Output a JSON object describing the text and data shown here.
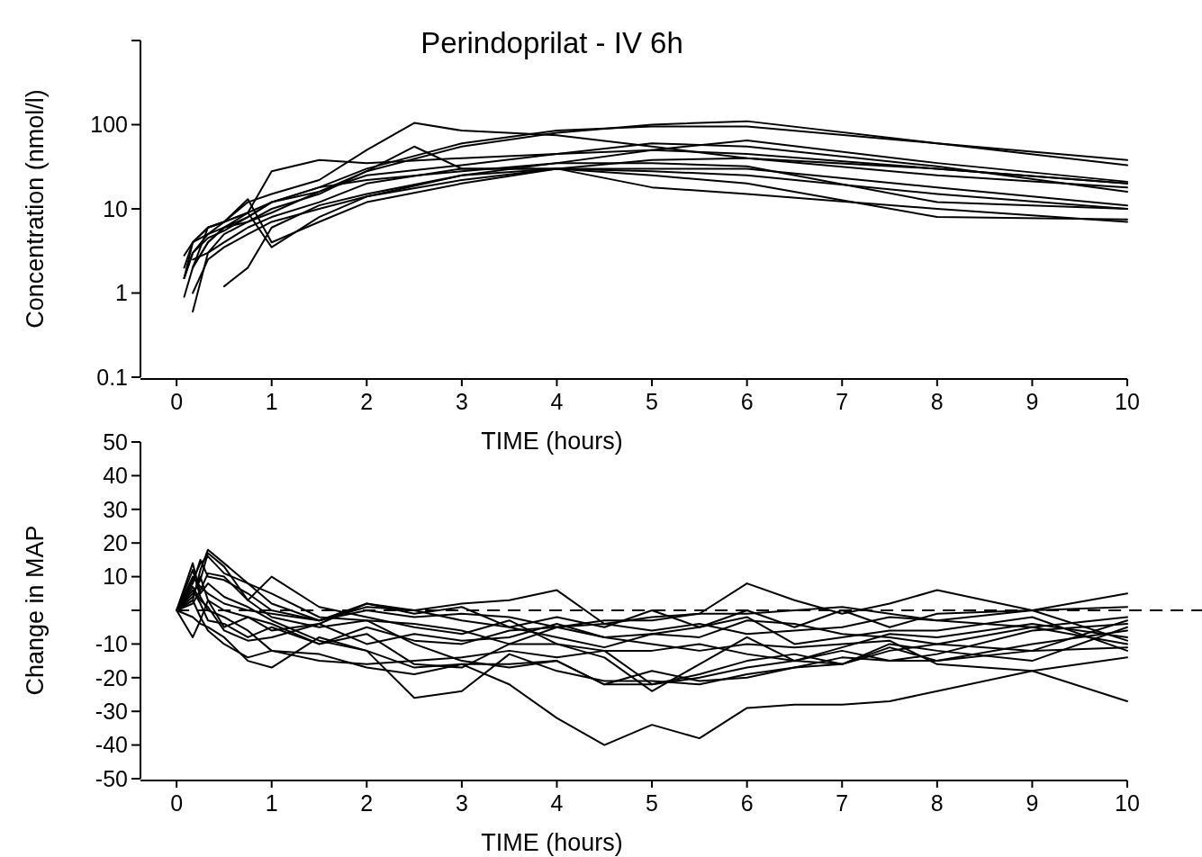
{
  "chart_data": [
    {
      "type": "line",
      "title": "Perindoprilat - IV 6h",
      "xlabel": "TIME (hours)",
      "ylabel": "Concentration (nmol/l)",
      "log": "y",
      "xlim": [
        -0.38,
        10
      ],
      "xticks": [
        0,
        1,
        2,
        3,
        4,
        5,
        6,
        7,
        8,
        9,
        10
      ],
      "ylim": [
        0.1,
        1000
      ],
      "yticks": [
        0.1,
        1,
        10,
        100,
        {
          "value": 1000,
          "label": null
        }
      ],
      "grid": false,
      "marker": "none",
      "line_style": "solid",
      "series": [
        {
          "color": "#000000",
          "x": [
            0.08,
            0.17,
            0.33,
            0.5,
            0.75,
            1,
            1.5,
            2,
            2.5,
            3,
            4,
            5,
            6,
            8,
            10
          ],
          "values": [
            2.8,
            4,
            6,
            7,
            12,
            15,
            22,
            50,
            105,
            85,
            75,
            55,
            40,
            30,
            20
          ]
        },
        {
          "color": "#000000",
          "x": [
            0.17,
            0.33,
            0.5,
            0.75,
            1,
            1.5,
            2,
            3,
            4,
            5,
            6,
            8,
            10
          ],
          "values": [
            0.6,
            3,
            5,
            7,
            10,
            15,
            28,
            55,
            80,
            100,
            110,
            60,
            38
          ]
        },
        {
          "color": "#000000",
          "x": [
            0.08,
            0.17,
            0.33,
            0.5,
            0.75,
            1,
            1.5,
            2,
            3,
            4,
            5,
            6,
            8,
            10
          ],
          "values": [
            1.5,
            4,
            5,
            6,
            8,
            12,
            18,
            30,
            60,
            85,
            95,
            95,
            60,
            33
          ]
        },
        {
          "color": "#000000",
          "x": [
            0.08,
            0.17,
            0.33,
            0.5,
            0.75,
            1,
            1.5,
            2,
            2.5,
            3,
            4,
            5,
            6,
            8,
            10
          ],
          "values": [
            0.9,
            2,
            4,
            6,
            7,
            9,
            16,
            28,
            55,
            30,
            30,
            28,
            25,
            15,
            10
          ]
        },
        {
          "color": "#000000",
          "x": [
            0.5,
            0.75,
            1,
            1.5,
            2,
            3,
            4,
            5,
            6,
            8,
            10
          ],
          "values": [
            1.2,
            2,
            6,
            11,
            15,
            25,
            35,
            50,
            65,
            35,
            21
          ]
        },
        {
          "color": "#000000",
          "x": [
            0.17,
            0.33,
            0.5,
            0.75,
            1,
            1.5,
            2,
            3,
            4,
            5,
            6,
            8,
            10
          ],
          "values": [
            2,
            6,
            7,
            9,
            28,
            38,
            35,
            40,
            45,
            50,
            45,
            30,
            20
          ]
        },
        {
          "color": "#000000",
          "x": [
            0.08,
            0.17,
            0.33,
            0.5,
            0.75,
            1,
            1.5,
            2,
            3,
            4,
            5,
            6,
            8,
            10
          ],
          "values": [
            1.5,
            3,
            4.5,
            5.5,
            8,
            12,
            18,
            22,
            28,
            35,
            35,
            32,
            12,
            10
          ]
        },
        {
          "color": "#000000",
          "x": [
            0.17,
            0.33,
            0.5,
            0.75,
            1,
            1.5,
            2,
            3,
            4,
            5,
            6,
            8,
            10
          ],
          "values": [
            1,
            2.5,
            3.5,
            5,
            7,
            10,
            14,
            22,
            30,
            38,
            40,
            25,
            18
          ]
        },
        {
          "color": "#000000",
          "x": [
            0.17,
            0.33,
            0.5,
            0.75,
            1,
            1.5,
            2,
            3,
            4,
            5,
            6,
            8,
            10
          ],
          "values": [
            2.5,
            3,
            4,
            6,
            8,
            12,
            20,
            30,
            30,
            18,
            15,
            10,
            7
          ]
        },
        {
          "color": "#000000",
          "x": [
            0.08,
            0.17,
            0.33,
            0.5,
            0.75,
            1,
            1.5,
            2,
            3,
            4,
            5,
            6,
            8,
            10
          ],
          "values": [
            1.5,
            3,
            5,
            7,
            13,
            4,
            7,
            12,
            20,
            30,
            25,
            20,
            8,
            7.5
          ]
        },
        {
          "color": "#000000",
          "x": [
            0.17,
            0.33,
            0.5,
            0.75,
            1,
            1.5,
            2,
            3,
            4,
            5,
            6,
            8,
            10
          ],
          "values": [
            2,
            4,
            6,
            9,
            3.5,
            8,
            14,
            25,
            30,
            30,
            30,
            18,
            11
          ]
        },
        {
          "color": "#000000",
          "x": [
            0.08,
            0.17,
            0.33,
            0.5,
            0.75,
            1,
            1.5,
            2,
            3,
            4,
            5,
            6,
            8,
            10
          ],
          "values": [
            2,
            4,
            6,
            7,
            9,
            12,
            16,
            25,
            33,
            45,
            60,
            55,
            32,
            16
          ]
        }
      ]
    },
    {
      "type": "line",
      "xlabel": "TIME (hours)",
      "ylabel": "Change in MAP",
      "xlim": [
        -0.38,
        10
      ],
      "xticks": [
        0,
        1,
        2,
        3,
        4,
        5,
        6,
        7,
        8,
        9,
        10
      ],
      "ylim": [
        -50,
        50
      ],
      "yticks": [
        -50,
        -40,
        -30,
        -20,
        -10,
        {
          "value": 0,
          "label": null
        },
        10,
        20,
        30,
        40,
        50
      ],
      "grid": false,
      "marker": "none",
      "line_style": "solid",
      "ref_lines": [
        {
          "axis": "y",
          "value": 0,
          "color": "#000000",
          "line_style": "dashed"
        }
      ],
      "x": [
        0,
        0.17,
        0.25,
        0.33,
        0.5,
        0.75,
        1,
        1.5,
        2,
        2.5,
        3,
        3.5,
        4,
        4.5,
        5,
        5.5,
        6,
        6.5,
        7,
        7.5,
        8,
        9,
        10
      ],
      "series": [
        {
          "color": "#000000",
          "values": [
            0,
            14,
            5,
            8,
            4,
            1,
            -3,
            -9,
            -12,
            -17,
            -16,
            -22,
            -32,
            -40,
            -34,
            -38,
            -29,
            -28,
            -28,
            -27,
            -24,
            -18,
            -14
          ]
        },
        {
          "color": "#000000",
          "values": [
            0,
            3,
            12,
            18,
            14,
            8,
            5,
            -2,
            -3,
            -10,
            -15,
            -17,
            -15,
            -22,
            -22,
            -20,
            -17,
            -15,
            -16,
            -12,
            -10,
            -5,
            -10
          ]
        },
        {
          "color": "#000000",
          "values": [
            0,
            8,
            15,
            10,
            9,
            5,
            0,
            -3,
            1,
            0,
            2,
            3,
            6,
            -4,
            -2,
            -1,
            8,
            3,
            -1,
            2,
            6,
            0,
            5
          ]
        },
        {
          "color": "#000000",
          "values": [
            0,
            5,
            9,
            17,
            13,
            3,
            -2,
            -5,
            -3,
            -4,
            -6,
            -10,
            -10,
            -12,
            -22,
            -19,
            -15,
            -13,
            -16,
            -10,
            -12,
            -15,
            -5
          ]
        },
        {
          "color": "#000000",
          "values": [
            0,
            -2,
            -4,
            -5,
            -8,
            -15,
            -17,
            -8,
            -12,
            -26,
            -24,
            -13,
            -18,
            -21,
            -21,
            -22,
            -19,
            -17,
            -16,
            -11,
            -15,
            -12,
            -3
          ]
        },
        {
          "color": "#000000",
          "values": [
            0,
            10,
            7,
            5,
            2,
            0,
            -1,
            -3,
            0,
            -2,
            -1,
            -2,
            -5,
            -3,
            -3,
            -1,
            -1,
            0,
            1,
            -1,
            -3,
            -5,
            -2
          ]
        },
        {
          "color": "#000000",
          "values": [
            0,
            2,
            6,
            11,
            10,
            3,
            10,
            1,
            -2,
            -5,
            -7,
            -3,
            -10,
            -14,
            -24,
            -16,
            -8,
            -15,
            -11,
            -7,
            -8,
            -4,
            -8
          ]
        },
        {
          "color": "#000000",
          "values": [
            0,
            -8,
            -3,
            3,
            0,
            -2,
            -6,
            -4,
            2,
            0,
            -3,
            -5,
            -8,
            -11,
            -7,
            -5,
            -2,
            -10,
            -8,
            -6,
            -6,
            -2,
            -12
          ]
        },
        {
          "color": "#000000",
          "values": [
            0,
            12,
            4,
            0,
            -2,
            -6,
            -12,
            -15,
            -16,
            -15,
            -14,
            -12,
            -14,
            -12,
            -12,
            -10,
            -13,
            -15,
            -12,
            -15,
            -13,
            -6,
            -4
          ]
        },
        {
          "color": "#000000",
          "values": [
            0,
            6,
            2,
            -3,
            -4,
            -8,
            -5,
            -10,
            -5,
            -9,
            -10,
            -6,
            -5,
            -8,
            -10,
            -12,
            -10,
            -11,
            -10,
            -9,
            -16,
            -18,
            -27
          ]
        },
        {
          "color": "#000000",
          "values": [
            0,
            4,
            10,
            3,
            -5,
            -2,
            -4,
            -10,
            -7,
            -16,
            -17,
            -10,
            -5,
            -4,
            -6,
            -4,
            -7,
            -6,
            -5,
            -2,
            -3,
            0,
            -9
          ]
        },
        {
          "color": "#000000",
          "values": [
            0,
            9,
            14,
            16,
            11,
            8,
            2,
            -3,
            2,
            -1,
            1,
            -5,
            -2,
            -5,
            0,
            -5,
            0,
            -5,
            0,
            -5,
            -1,
            0,
            1
          ]
        },
        {
          "color": "#000000",
          "values": [
            0,
            3,
            -2,
            -6,
            -10,
            -14,
            -12,
            -13,
            -17,
            -19,
            -16,
            -16,
            -15,
            -22,
            -18,
            -21,
            -20,
            -17,
            -14,
            -15,
            -15,
            -10,
            -6
          ]
        },
        {
          "color": "#000000",
          "values": [
            0,
            7,
            3,
            1,
            -6,
            -9,
            -8,
            -4,
            -10,
            -7,
            -9,
            -8,
            -4,
            -8,
            -7,
            -8,
            -3,
            -4,
            -7,
            -8,
            -10,
            -12,
            -11
          ]
        }
      ]
    }
  ]
}
